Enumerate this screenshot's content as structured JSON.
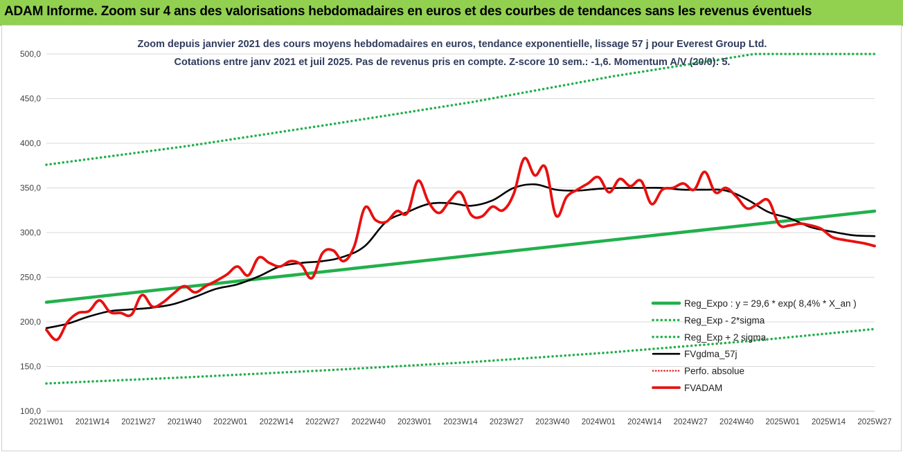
{
  "banner": {
    "title": "ADAM Informe. Zoom sur 4 ans des valorisations hebdomadaires en euros et des courbes de tendances sans les revenus éventuels"
  },
  "colors": {
    "banner_bg": "#92d050",
    "title_text": "#2f3b5c",
    "reg_expo": "#22b04c",
    "sigma_bands": "#22b04c",
    "moving_avg": "#000000",
    "perfo_absolue": "#e02020",
    "price": "#e81010",
    "axis_text": "#404040"
  },
  "chart_data": {
    "type": "line",
    "title_line1": "Zoom depuis janvier 2021 des cours moyens hebdomadaires en euros, tendance exponentielle, lissage 57 j pour Everest Group Ltd.",
    "title_line2": "Cotations entre janv 2021 et juil 2025. Pas de revenus pris en compte. Z-score 10 sem.: -1,6. Momentum A/V (20/0): 5.",
    "xlabel": "",
    "ylabel": "",
    "ylim": [
      100,
      500
    ],
    "yticks": [
      "100,0",
      "150,0",
      "200,0",
      "250,0",
      "300,0",
      "350,0",
      "400,0",
      "450,0",
      "500,0"
    ],
    "x_tick_labels": [
      "2021W01",
      "2021W14",
      "2021W27",
      "2021W40",
      "2022W01",
      "2022W14",
      "2022W27",
      "2022W40",
      "2023W01",
      "2023W14",
      "2023W27",
      "2023W40",
      "2024W01",
      "2024W14",
      "2024W27",
      "2024W40",
      "2025W01",
      "2025W14",
      "2025W27"
    ],
    "x_range_weeks": [
      0,
      234
    ],
    "grid": "horizontal",
    "legend_position": "bottom-right",
    "legend": [
      {
        "key": "reg",
        "label": "Reg_Expo : y = 29,6 * exp( 8,4% *  X_an )",
        "style": "solid-thick"
      },
      {
        "key": "lower",
        "label": "Reg_Exp - 2*sigma",
        "style": "dotted"
      },
      {
        "key": "upper",
        "label": "Reg_Exp + 2 sigma",
        "style": "dotted"
      },
      {
        "key": "ma",
        "label": "FVgdma_57j",
        "style": "solid"
      },
      {
        "key": "perfo",
        "label": "Perfo. absolue",
        "style": "dotted"
      },
      {
        "key": "price",
        "label": "FVADAM",
        "style": "solid-thick"
      }
    ],
    "series": [
      {
        "key": "reg",
        "name": "Reg_Expo : y = 29,6 * exp( 8,4% *  X_an )",
        "x": [
          0,
          234
        ],
        "values": [
          222,
          324
        ]
      },
      {
        "key": "upper",
        "name": "Reg_Exp + 2 sigma",
        "x": [
          0,
          40,
          80,
          120,
          160,
          200,
          234
        ],
        "values": [
          376,
          397,
          421,
          446,
          475,
          500,
          500
        ]
      },
      {
        "key": "lower",
        "name": "Reg_Exp - 2*sigma",
        "x": [
          0,
          40,
          80,
          120,
          160,
          200,
          234
        ],
        "values": [
          131,
          138,
          146,
          155,
          166,
          179,
          192
        ]
      },
      {
        "key": "ma",
        "name": "FVgdma_57j",
        "x": [
          0,
          6,
          12,
          18,
          24,
          30,
          36,
          42,
          48,
          54,
          60,
          66,
          72,
          78,
          84,
          90,
          96,
          102,
          108,
          114,
          120,
          126,
          132,
          138,
          144,
          150,
          156,
          162,
          168,
          174,
          180,
          186,
          192,
          198,
          204,
          210,
          216,
          222,
          228,
          234
        ],
        "values": [
          193,
          198,
          206,
          212,
          214,
          216,
          220,
          228,
          237,
          242,
          251,
          262,
          266,
          268,
          273,
          285,
          312,
          323,
          332,
          333,
          330,
          336,
          350,
          354,
          348,
          347,
          349,
          350,
          350,
          350,
          348,
          348,
          347,
          337,
          323,
          316,
          306,
          301,
          297,
          296
        ]
      },
      {
        "key": "price",
        "name": "FVADAM",
        "x": [
          0,
          3,
          6,
          9,
          12,
          15,
          18,
          21,
          24,
          27,
          30,
          33,
          36,
          39,
          42,
          45,
          48,
          51,
          54,
          57,
          60,
          63,
          66,
          69,
          72,
          75,
          78,
          81,
          84,
          87,
          90,
          93,
          96,
          99,
          102,
          105,
          108,
          111,
          114,
          117,
          120,
          123,
          126,
          129,
          132,
          135,
          138,
          141,
          144,
          147,
          150,
          153,
          156,
          159,
          162,
          165,
          168,
          171,
          174,
          177,
          180,
          183,
          186,
          189,
          192,
          195,
          198,
          201,
          204,
          207,
          210,
          213,
          216,
          219,
          222,
          225,
          228,
          231,
          234
        ],
        "values": [
          191,
          180,
          200,
          210,
          212,
          224,
          211,
          210,
          208,
          230,
          217,
          222,
          232,
          240,
          233,
          240,
          246,
          253,
          262,
          252,
          272,
          266,
          262,
          268,
          264,
          249,
          277,
          280,
          268,
          285,
          328,
          314,
          312,
          324,
          322,
          358,
          334,
          322,
          336,
          345,
          320,
          318,
          329,
          325,
          343,
          383,
          364,
          373,
          319,
          340,
          348,
          355,
          362,
          345,
          360,
          352,
          358,
          332,
          348,
          350,
          355,
          348,
          368,
          345,
          350,
          340,
          327,
          332,
          336,
          309,
          308,
          310,
          308,
          304,
          295,
          292,
          290,
          288,
          285
        ]
      }
    ]
  }
}
